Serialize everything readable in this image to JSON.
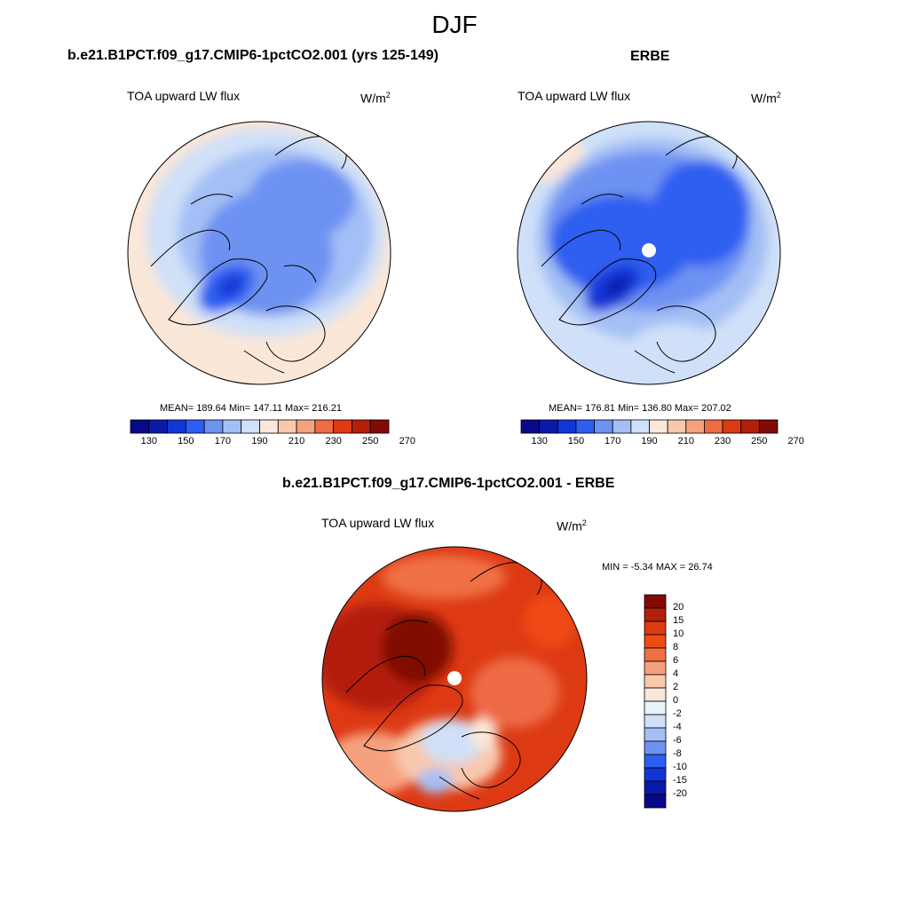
{
  "main_title": "DJF",
  "panels": [
    {
      "title": "b.e21.B1PCT.f09_g17.CMIP6-1pctCO2.001 (yrs 125-149)",
      "variable": "TOA upward LW flux",
      "unit_base": "W/m",
      "unit_exp": "2",
      "stats": "MEAN= 189.64  Min= 147.11  Max= 216.21",
      "mean": 189.64,
      "min": 147.11,
      "max": 216.21
    },
    {
      "title": "ERBE",
      "variable": "TOA upward LW flux",
      "unit_base": "W/m",
      "unit_exp": "2",
      "stats": "MEAN= 176.81  Min= 136.80  Max= 207.02",
      "mean": 176.81,
      "min": 136.8,
      "max": 207.02
    },
    {
      "title": "b.e21.B1PCT.f09_g17.CMIP6-1pctCO2.001 - ERBE",
      "variable": "TOA upward LW flux",
      "unit_base": "W/m",
      "unit_exp": "2",
      "stats": "MIN =  -5.34 MAX =  26.74",
      "min": -5.34,
      "max": 26.74
    }
  ],
  "colorbar_horizontal": {
    "tick_labels": [
      "130",
      "150",
      "170",
      "190",
      "210",
      "230",
      "250",
      "270"
    ],
    "colors": [
      "#08088a",
      "#0a1aa8",
      "#1236d6",
      "#2e5ef0",
      "#6e92f2",
      "#a4bff5",
      "#cfe0f8",
      "#fbe7d8",
      "#f8c8ad",
      "#f5a17e",
      "#ee6b44",
      "#dd3a14",
      "#b31f09",
      "#800b04"
    ]
  },
  "colorbar_vertical": {
    "tick_labels": [
      "20",
      "15",
      "10",
      "8",
      "6",
      "4",
      "2",
      "0",
      "-2",
      "-4",
      "-6",
      "-8",
      "-10",
      "-15",
      "-20"
    ],
    "colors": [
      "#800b04",
      "#b31f09",
      "#dd3a14",
      "#ef4a12",
      "#f07044",
      "#f5a17e",
      "#f8c8ad",
      "#fbe7d8",
      "#eaf2fb",
      "#cfe0f8",
      "#a4bff5",
      "#6e92f2",
      "#2e5ef0",
      "#1236d6",
      "#0a1aa8",
      "#08088a"
    ]
  }
}
